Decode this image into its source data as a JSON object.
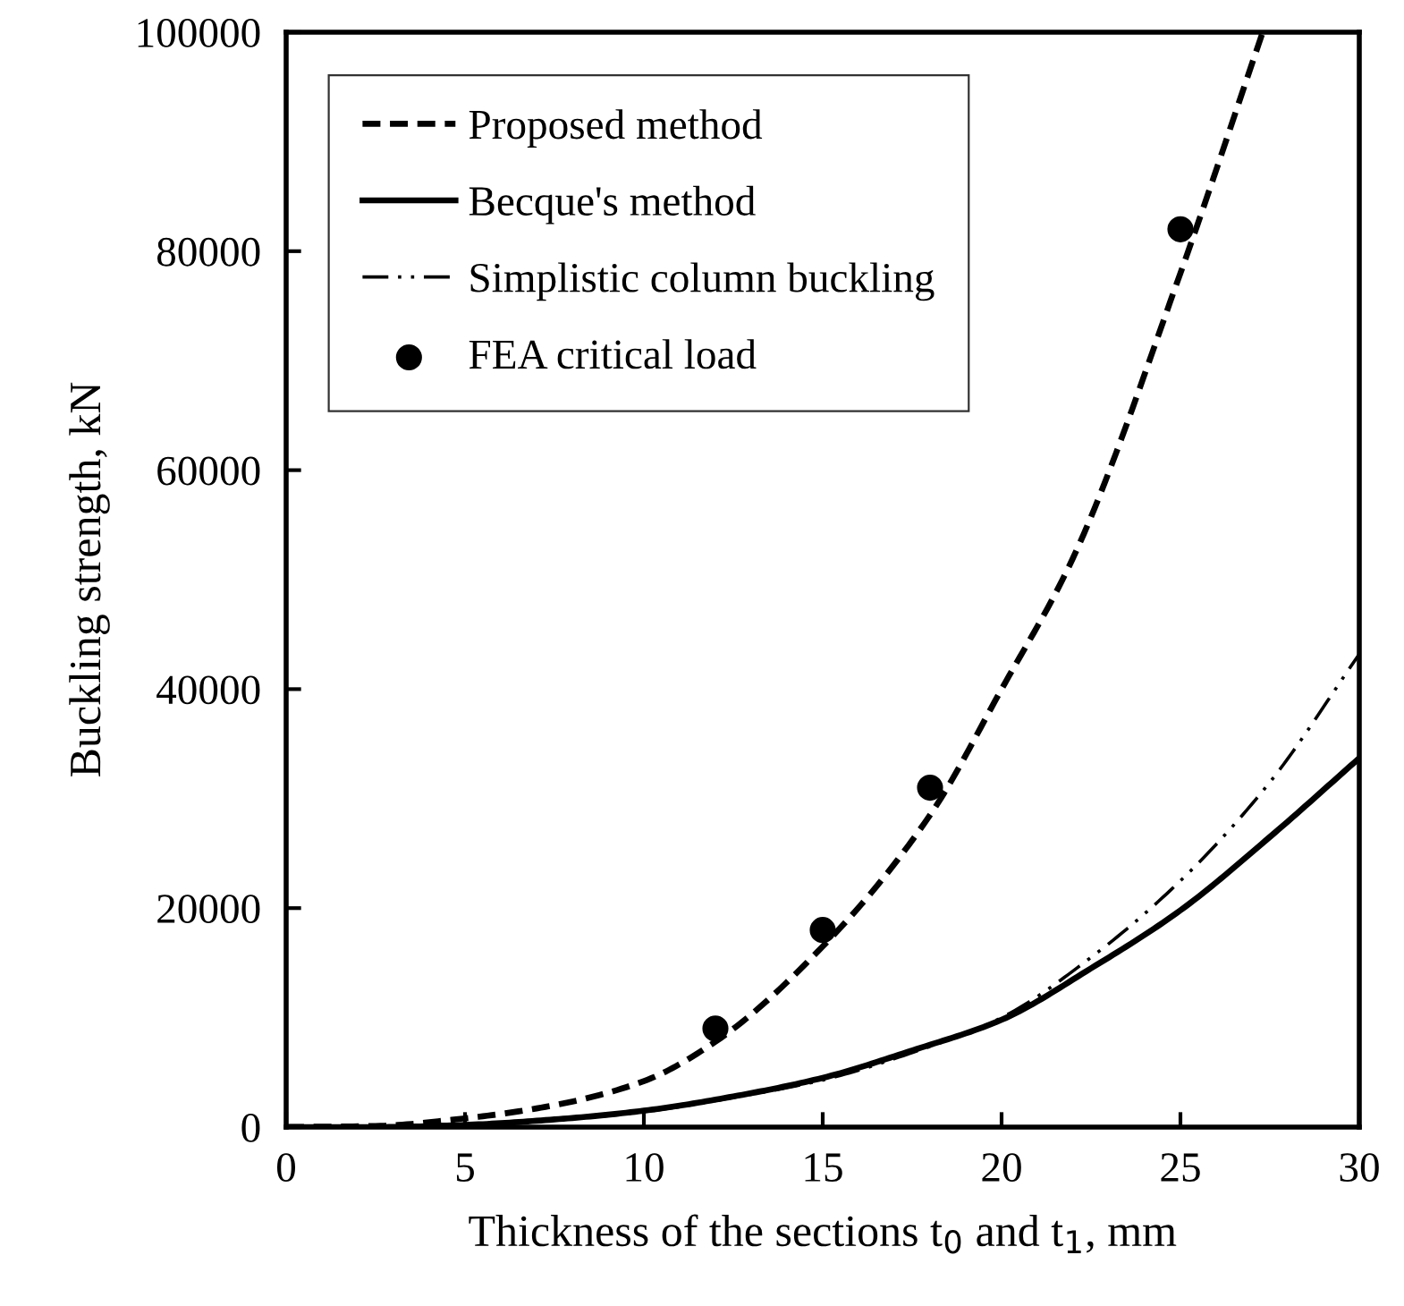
{
  "chart_data": {
    "type": "line",
    "xlabel": "Thickness of the sections t$_{0}$ and t$_{1}$, mm",
    "ylabel": "Buckling strength, kN",
    "xlim": [
      0,
      30
    ],
    "ylim": [
      0,
      100000
    ],
    "xticks": [
      0,
      5,
      10,
      15,
      20,
      25,
      30
    ],
    "yticks": [
      0,
      20000,
      40000,
      60000,
      80000,
      100000
    ],
    "grid": false,
    "legend": "top left",
    "series": [
      {
        "name": "Proposed method",
        "line_style": "dashed",
        "marker": "none",
        "color": "#000000",
        "x": [
          0,
          2.5,
          5,
          7.5,
          10,
          12,
          15,
          18,
          20,
          22,
          25,
          27.3
        ],
        "values": [
          0,
          100,
          800,
          2000,
          4200,
          7800,
          16500,
          28500,
          40000,
          52000,
          78000,
          100000
        ]
      },
      {
        "name": "Becque's method",
        "line_style": "solid",
        "marker": "none",
        "color": "#000000",
        "x": [
          0,
          2.5,
          5,
          7.5,
          10,
          12.5,
          15,
          17.5,
          20,
          22.5,
          25,
          27.5,
          30
        ],
        "values": [
          0,
          0,
          200,
          700,
          1500,
          2800,
          4500,
          7000,
          9800,
          14500,
          19800,
          26500,
          33700
        ]
      },
      {
        "name": "Simplistic column buckling",
        "line_style": "dashdotdot",
        "marker": "none",
        "color": "#000000",
        "x": [
          0,
          2.5,
          5,
          7.5,
          10,
          12.5,
          15,
          17.5,
          20,
          22.5,
          25,
          27.5,
          30
        ],
        "values": [
          0,
          0,
          200,
          650,
          1400,
          2700,
          4300,
          6800,
          10000,
          15500,
          22500,
          31500,
          43200
        ]
      },
      {
        "name": "FEA critical load",
        "type": "scatter",
        "marker": "circle",
        "color": "#000000",
        "x": [
          12,
          15,
          18,
          25
        ],
        "values": [
          9000,
          18000,
          31000,
          82000
        ]
      }
    ]
  }
}
